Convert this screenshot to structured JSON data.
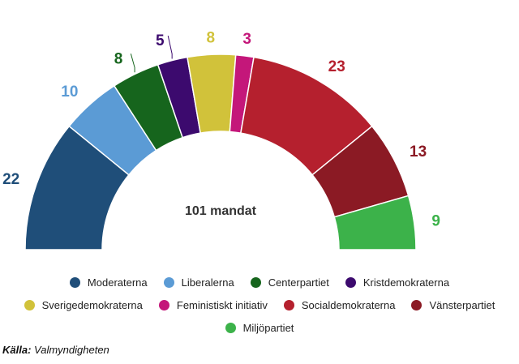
{
  "chart_data": {
    "type": "pie",
    "subtype": "parliament-semicircle",
    "center_label": "101 mandat",
    "source_label": "Källa:",
    "source_value": "Valmyndigheten",
    "parties": [
      {
        "name": "Moderaterna",
        "seats": 22,
        "color": "#1f4e79"
      },
      {
        "name": "Liberalerna",
        "seats": 10,
        "color": "#5b9bd5"
      },
      {
        "name": "Centerpartiet",
        "seats": 8,
        "color": "#16651d"
      },
      {
        "name": "Kristdemokraterna",
        "seats": 5,
        "color": "#3c0a6e"
      },
      {
        "name": "Sverigedemokraterna",
        "seats": 8,
        "color": "#d1c23a"
      },
      {
        "name": "Feministiskt initiativ",
        "seats": 3,
        "color": "#c4177a"
      },
      {
        "name": "Socialdemokraterna",
        "seats": 23,
        "color": "#b5202e"
      },
      {
        "name": "Vänsterpartiet",
        "seats": 13,
        "color": "#8b1a24"
      },
      {
        "name": "Miljöpartiet",
        "seats": 9,
        "color": "#3cb24a"
      }
    ],
    "legend_position": "bottom"
  }
}
